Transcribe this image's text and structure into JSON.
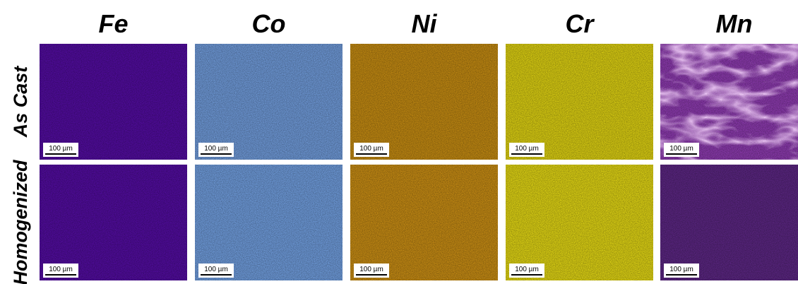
{
  "columns": [
    "Fe",
    "Co",
    "Ni",
    "Cr",
    "Mn"
  ],
  "rows": [
    "As Cast",
    "Homogenized"
  ],
  "panels": [
    [
      {
        "scale_bar": "100 µm"
      },
      {
        "scale_bar": "100 µm"
      },
      {
        "scale_bar": "100 µm"
      },
      {
        "scale_bar": "100 µm"
      },
      {
        "scale_bar": "100 µm"
      }
    ],
    [
      {
        "scale_bar": "100 µm"
      },
      {
        "scale_bar": "100 µm"
      },
      {
        "scale_bar": "100 µm"
      },
      {
        "scale_bar": "100 µm"
      },
      {
        "scale_bar": "100 µm"
      }
    ]
  ]
}
